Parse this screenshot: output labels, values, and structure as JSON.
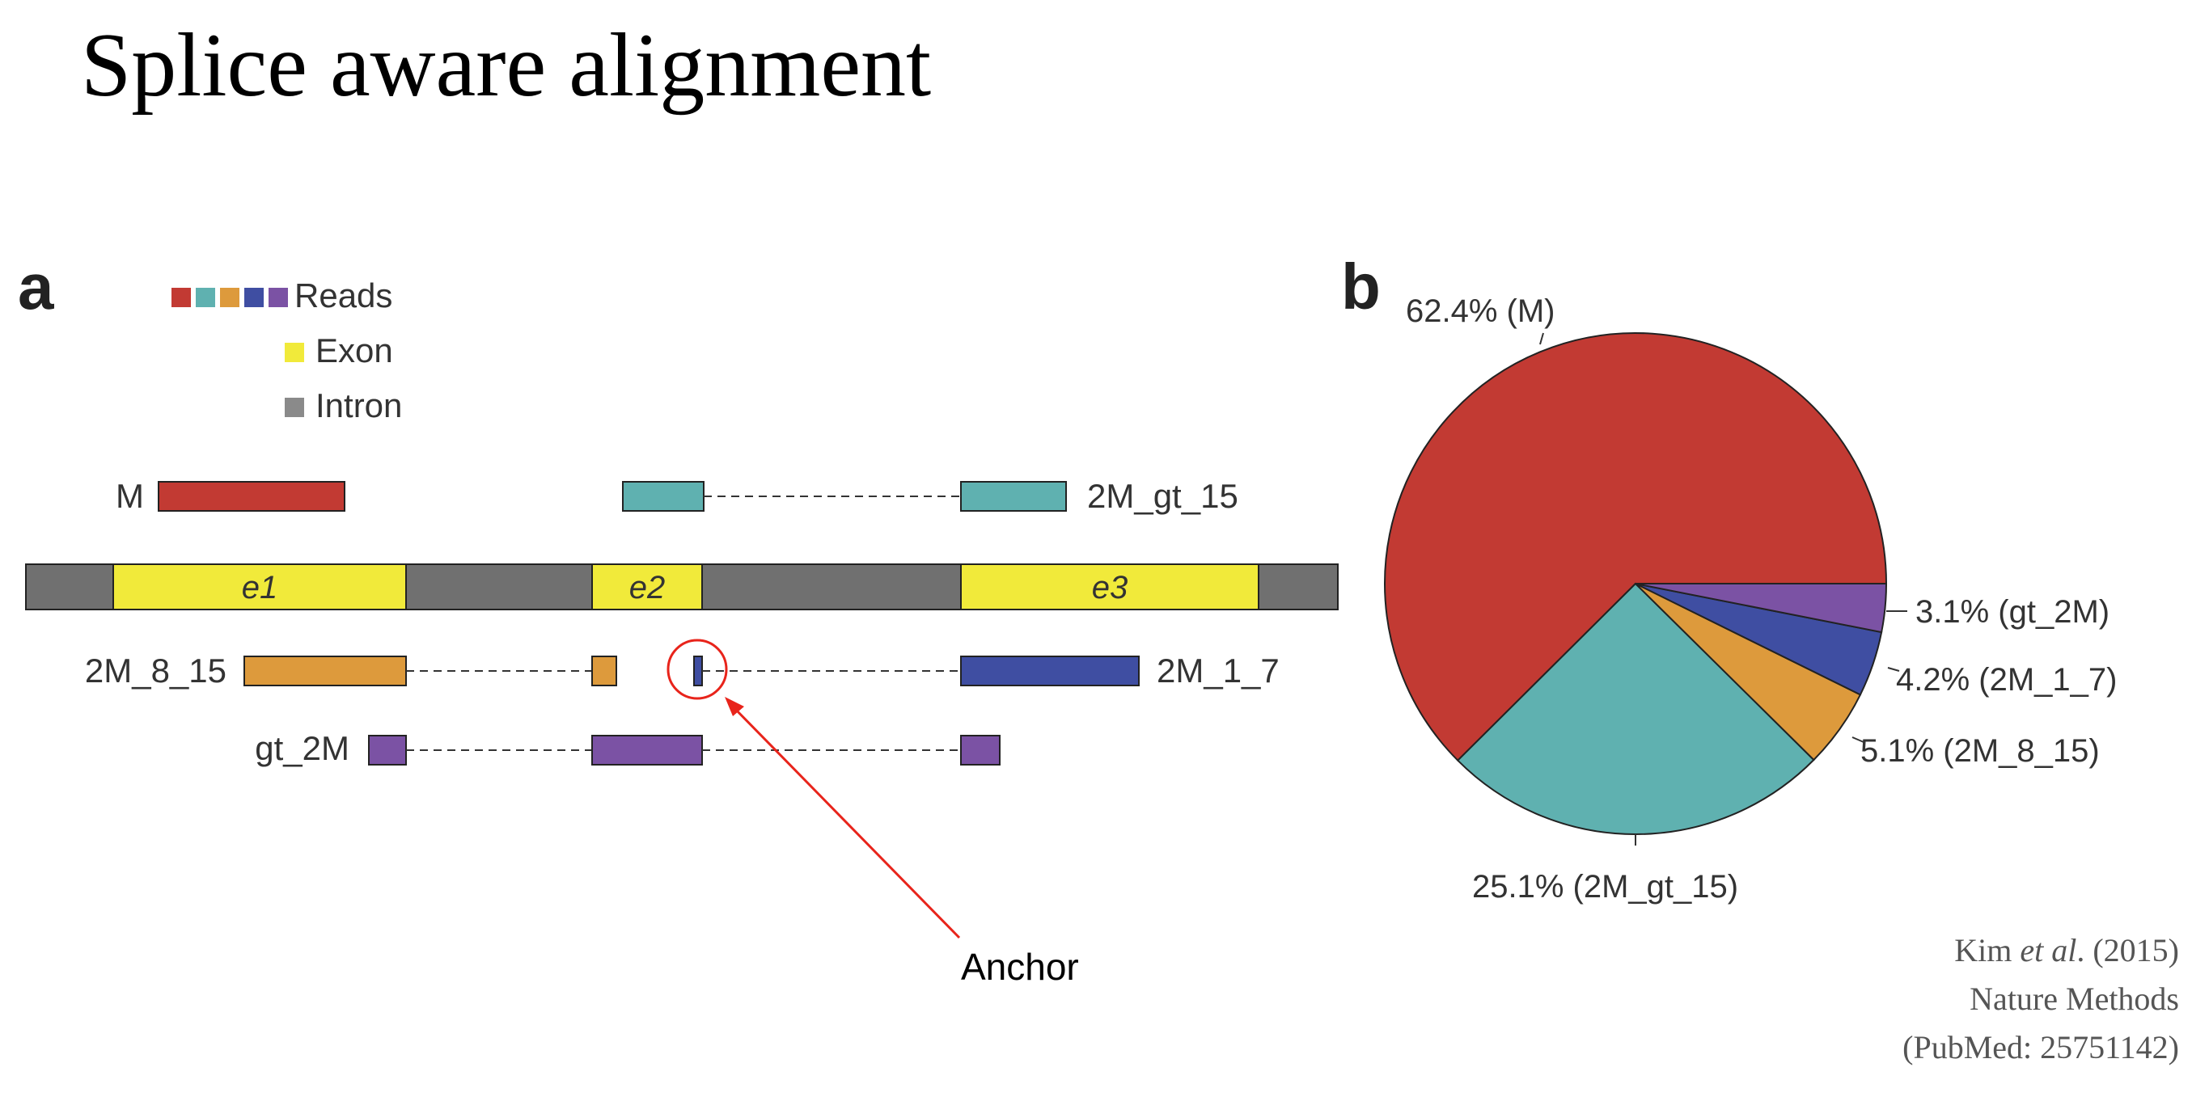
{
  "title": "Splice aware alignment",
  "colors": {
    "M": "#c23a33",
    "2M_gt_15": "#5fb1b0",
    "2M_8_15": "#dd9a3c",
    "2M_1_7": "#3f4ea2",
    "gt_2M": "#7b52a4",
    "exon": "#f1ea3a",
    "intron": "#707070",
    "annotation": "#e8241b"
  },
  "panel_a": {
    "label": "a",
    "legend": {
      "reads_label": "Reads",
      "exon_label": "Exon",
      "intron_label": "Intron"
    },
    "exons": [
      "e1",
      "e2",
      "e3"
    ],
    "reads": {
      "m": "M",
      "gt15": "2M_gt_15",
      "r815": "2M_8_15",
      "r17": "2M_1_7",
      "gt2m": "gt_2M"
    },
    "annotation": "Anchor"
  },
  "panel_b": {
    "label": "b"
  },
  "chart_data": {
    "type": "pie",
    "slices": [
      {
        "name": "M",
        "value": 62.4,
        "label": "62.4% (M)"
      },
      {
        "name": "2M_gt_15",
        "value": 25.1,
        "label": "25.1% (2M_gt_15)"
      },
      {
        "name": "2M_8_15",
        "value": 5.1,
        "label": "5.1% (2M_8_15)"
      },
      {
        "name": "2M_1_7",
        "value": 4.2,
        "label": "4.2% (2M_1_7)"
      },
      {
        "name": "gt_2M",
        "value": 3.1,
        "label": "3.1% (gt_2M)"
      }
    ]
  },
  "citation": {
    "line1_prefix": "Kim ",
    "line1_italic": "et al",
    "line1_suffix": ". (2015)",
    "line2": "Nature Methods",
    "line3": "(PubMed: 25751142)"
  }
}
